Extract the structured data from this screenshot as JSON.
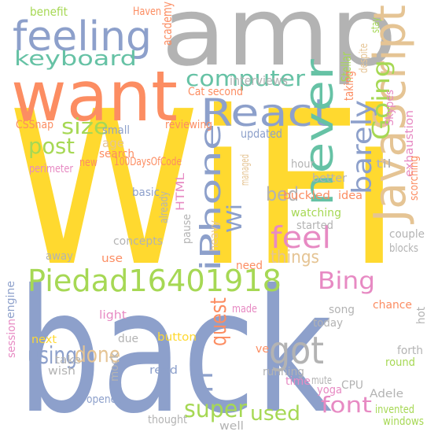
{
  "palette": {
    "green": "#a6d854",
    "orange": "#fc8d62",
    "blue": "#8da0cb",
    "gray": "#b3b3b3",
    "yellow": "#ffd92f",
    "teal": "#66c2a5",
    "tan": "#e5c494",
    "pink": "#e78ac3"
  },
  "words": [
    {
      "text": "WiFi",
      "color": "yellow"
    },
    {
      "text": "back",
      "color": "blue"
    },
    {
      "text": "amp",
      "color": "gray"
    },
    {
      "text": "want",
      "color": "orange"
    },
    {
      "text": "feeling",
      "color": "blue"
    },
    {
      "text": "keyboard",
      "color": "teal"
    },
    {
      "text": "JavaScript",
      "color": "tan"
    },
    {
      "text": "React",
      "color": "blue"
    },
    {
      "text": "computer",
      "color": "teal"
    },
    {
      "text": "iPhone",
      "color": "blue"
    },
    {
      "text": "never",
      "color": "teal"
    },
    {
      "text": "barely",
      "color": "blue"
    },
    {
      "text": "Going",
      "color": "green"
    },
    {
      "text": "Piedad16401918",
      "color": "green"
    },
    {
      "text": "feel",
      "color": "pink"
    },
    {
      "text": "got",
      "color": "gray"
    },
    {
      "text": "Bing",
      "color": "pink"
    },
    {
      "text": "post",
      "color": "green"
    },
    {
      "text": "size",
      "color": "green"
    },
    {
      "text": "Wi",
      "color": "blue"
    },
    {
      "text": "bed",
      "color": "gray"
    },
    {
      "text": "things",
      "color": "tan"
    },
    {
      "text": "quest",
      "color": "orange"
    },
    {
      "text": "Fi",
      "color": "blue"
    },
    {
      "text": "using",
      "color": "blue"
    },
    {
      "text": "done",
      "color": "tan"
    },
    {
      "text": "super",
      "color": "green"
    },
    {
      "text": "used",
      "color": "green"
    },
    {
      "text": "font",
      "color": "pink"
    },
    {
      "text": "benefit",
      "color": "green"
    },
    {
      "text": "Haven",
      "color": "orange"
    },
    {
      "text": "age",
      "color": "tan"
    },
    {
      "text": "academy",
      "color": "orange"
    },
    {
      "text": "despite",
      "color": "tan"
    },
    {
      "text": "Stellar",
      "color": "green"
    },
    {
      "text": "taking",
      "color": "orange"
    },
    {
      "text": "stay",
      "color": "green"
    },
    {
      "text": "interviews",
      "color": "gray"
    },
    {
      "text": "Skypes",
      "color": "pink"
    },
    {
      "text": "Cat second",
      "color": "orange"
    },
    {
      "text": "reviewing",
      "color": "orange"
    },
    {
      "text": "exhaustion",
      "color": "pink"
    },
    {
      "text": "CSSnap",
      "color": "orange"
    },
    {
      "text": "small",
      "color": "blue"
    },
    {
      "text": "updated",
      "color": "blue"
    },
    {
      "text": "search",
      "color": "orange"
    },
    {
      "text": "new",
      "color": "orange"
    },
    {
      "text": "100DaysOfCode",
      "color": "orange"
    },
    {
      "text": "managed",
      "color": "tan"
    },
    {
      "text": "til",
      "color": "gray"
    },
    {
      "text": "scorching",
      "color": "orange"
    },
    {
      "text": "perimeter",
      "color": "pink"
    },
    {
      "text": "hour",
      "color": "gray"
    },
    {
      "text": "HTML",
      "color": "pink"
    },
    {
      "text": "basic",
      "color": "blue"
    },
    {
      "text": "already",
      "color": "gray"
    },
    {
      "text": "buckled",
      "color": "orange"
    },
    {
      "text": "better",
      "color": "gray"
    },
    {
      "text": "idea",
      "color": "orange"
    },
    {
      "text": "watching",
      "color": "green"
    },
    {
      "text": "started",
      "color": "gray"
    },
    {
      "text": "pause",
      "color": "gray"
    },
    {
      "text": "heavy",
      "color": "tan"
    },
    {
      "text": "concepts",
      "color": "gray"
    },
    {
      "text": "couple",
      "color": "gray"
    },
    {
      "text": "blocks",
      "color": "gray"
    },
    {
      "text": "away",
      "color": "gray"
    },
    {
      "text": "use",
      "color": "orange"
    },
    {
      "text": "need",
      "color": "orange"
    },
    {
      "text": "engine",
      "color": "blue"
    },
    {
      "text": "session",
      "color": "pink"
    },
    {
      "text": "light",
      "color": "pink"
    },
    {
      "text": "made",
      "color": "pink"
    },
    {
      "text": "song",
      "color": "gray"
    },
    {
      "text": "chance",
      "color": "orange"
    },
    {
      "text": "next",
      "color": "yellow"
    },
    {
      "text": "due",
      "color": "gray"
    },
    {
      "text": "button",
      "color": "yellow"
    },
    {
      "text": "today",
      "color": "gray"
    },
    {
      "text": "hot",
      "color": "gray"
    },
    {
      "text": "take",
      "color": "gray"
    },
    {
      "text": "wish",
      "color": "gray"
    },
    {
      "text": "mock",
      "color": "gray"
    },
    {
      "text": "ve",
      "color": "orange"
    },
    {
      "text": "running",
      "color": "gray"
    },
    {
      "text": "forth",
      "color": "gray"
    },
    {
      "text": "round",
      "color": "green"
    },
    {
      "text": "read",
      "color": "blue"
    },
    {
      "text": "time",
      "color": "pink"
    },
    {
      "text": "mute",
      "color": "gray"
    },
    {
      "text": "yoga",
      "color": "pink"
    },
    {
      "text": "CPU",
      "color": "gray"
    },
    {
      "text": "Adele",
      "color": "gray"
    },
    {
      "text": "opened",
      "color": "blue"
    },
    {
      "text": "invented",
      "color": "green"
    },
    {
      "text": "thought",
      "color": "gray"
    },
    {
      "text": "well",
      "color": "gray"
    },
    {
      "text": "windows",
      "color": "green"
    }
  ]
}
